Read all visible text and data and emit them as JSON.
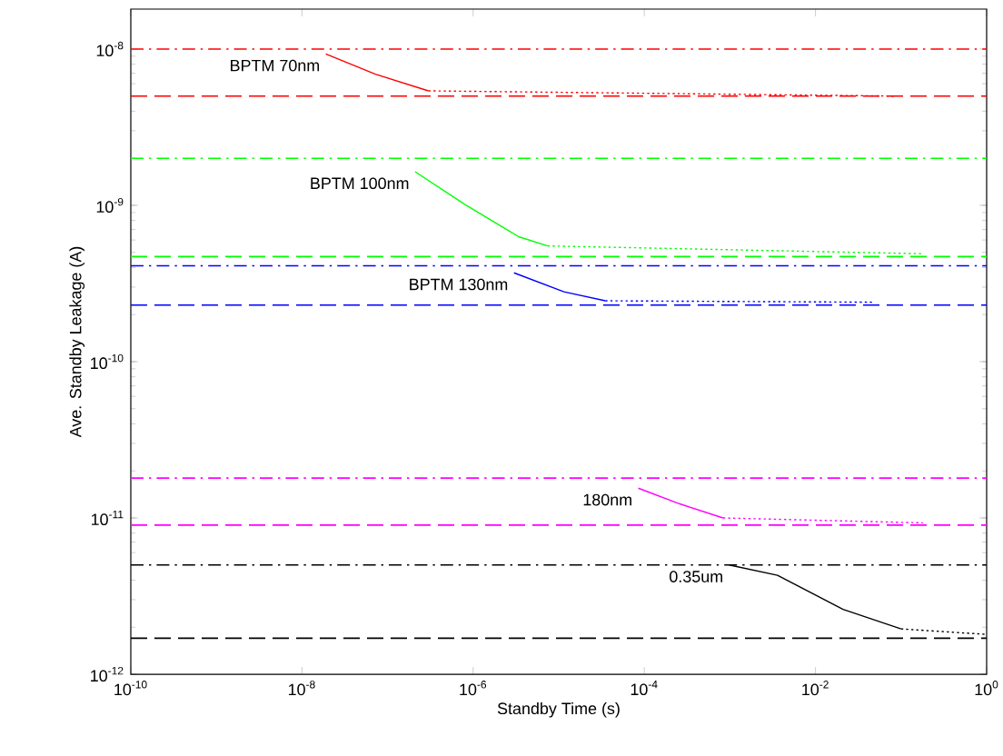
{
  "chart_data": {
    "type": "line",
    "xlabel": "Standby Time (s)",
    "ylabel": "Ave. Standby Leakage (A)",
    "log": "xy",
    "grid": false,
    "legend": false,
    "marker": "none",
    "xlim": [
      1e-10,
      1
    ],
    "ylim": [
      1e-12,
      1.8e-08
    ],
    "xticks": [
      {
        "value": 1e-10,
        "label": "10$^{-10}$"
      },
      {
        "value": 1e-08,
        "label": "10$^{-8}$"
      },
      {
        "value": 1e-06,
        "label": "10$^{-6}$"
      },
      {
        "value": 0.0001,
        "label": "10$^{-4}$"
      },
      {
        "value": 0.01,
        "label": "10$^{-2}$"
      },
      {
        "value": 1,
        "label": "10$^{0}$"
      }
    ],
    "yticks": [
      {
        "value": 1e-12,
        "label": "10$^{-12}$"
      },
      {
        "value": 1e-11,
        "label": "10$^{-11}$"
      },
      {
        "value": 1e-10,
        "label": "10$^{-10}$"
      },
      {
        "value": 1e-09,
        "label": "10$^{-9}$"
      },
      {
        "value": 1e-08,
        "label": "10$^{-8}$"
      }
    ],
    "series": [
      {
        "name": "BPTM 70nm",
        "color": "#ff0000",
        "line_style": "solid",
        "x": [
          1.9e-08,
          7.2e-08,
          3e-07
        ],
        "values": [
          9.3e-09,
          6.9e-09,
          5.4e-09
        ]
      },
      {
        "color": "#ff0000",
        "line_style": "dotted",
        "x": [
          3e-07,
          0.083
        ],
        "values": [
          5.4e-09,
          5e-09
        ]
      },
      {
        "name": "BPTM 100nm",
        "color": "#00ff00",
        "line_style": "solid",
        "x": [
          2.1e-07,
          8.3e-07,
          3.4e-06,
          7.4e-06
        ],
        "values": [
          1.64e-09,
          1e-09,
          6.3e-10,
          5.5e-10
        ]
      },
      {
        "color": "#00ff00",
        "line_style": "dotted",
        "x": [
          7.4e-06,
          0.18
        ],
        "values": [
          5.5e-10,
          4.9e-10
        ]
      },
      {
        "name": "BPTM 130nm",
        "color": "#0000ff",
        "line_style": "solid",
        "x": [
          3e-06,
          1.15e-05,
          3.5e-05
        ],
        "values": [
          3.7e-10,
          2.8e-10,
          2.45e-10
        ]
      },
      {
        "color": "#0000ff",
        "line_style": "dotted",
        "x": [
          3.5e-05,
          0.046
        ],
        "values": [
          2.45e-10,
          2.4e-10
        ]
      },
      {
        "name": "180nm",
        "color": "#ff00ff",
        "line_style": "solid",
        "x": [
          8.5e-05,
          0.00026,
          0.00083
        ],
        "values": [
          1.55e-11,
          1.23e-11,
          1e-11
        ]
      },
      {
        "color": "#ff00ff",
        "line_style": "dotted",
        "x": [
          0.00083,
          0.18
        ],
        "values": [
          1e-11,
          9.3e-12
        ]
      },
      {
        "name": "0.35um",
        "color": "#000000",
        "line_style": "solid",
        "x": [
          0.00098,
          0.0036,
          0.021,
          0.1
        ],
        "values": [
          5e-12,
          4.3e-12,
          2.6e-12,
          1.95e-12
        ]
      },
      {
        "color": "#000000",
        "line_style": "dotted",
        "x": [
          0.1,
          0.98
        ],
        "values": [
          1.95e-12,
          1.8e-12
        ]
      }
    ],
    "ref_lines": [
      {
        "axis": "y",
        "value": 1e-08,
        "color": "#ff0000",
        "line_style": "dashdot"
      },
      {
        "axis": "y",
        "value": 5e-09,
        "color": "#ff0000",
        "line_style": "dashed"
      },
      {
        "axis": "y",
        "value": 2e-09,
        "color": "#00ff00",
        "line_style": "dashdot"
      },
      {
        "axis": "y",
        "value": 4.7e-10,
        "color": "#00ff00",
        "line_style": "dashed"
      },
      {
        "axis": "y",
        "value": 4.1e-10,
        "color": "#0000ff",
        "line_style": "dashdot"
      },
      {
        "axis": "y",
        "value": 2.3e-10,
        "color": "#0000ff",
        "line_style": "dashed"
      },
      {
        "axis": "y",
        "value": 1.8e-11,
        "color": "#ff00ff",
        "line_style": "dashdot"
      },
      {
        "axis": "y",
        "value": 9e-12,
        "color": "#ff00ff",
        "line_style": "dashed"
      },
      {
        "axis": "y",
        "value": 5e-12,
        "color": "#000000",
        "line_style": "dashdot"
      },
      {
        "axis": "y",
        "value": 1.7e-12,
        "color": "#000000",
        "line_style": "dashed"
      }
    ]
  }
}
